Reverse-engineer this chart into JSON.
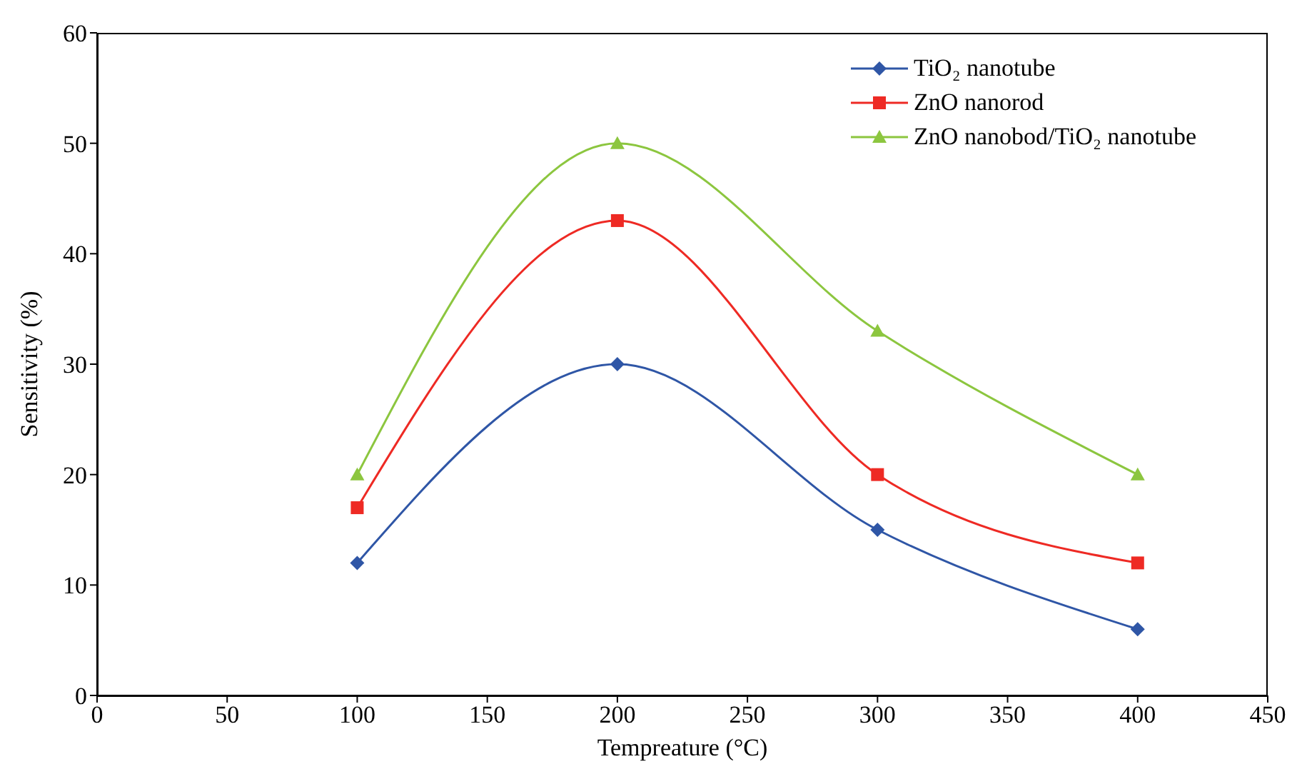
{
  "chart_data": {
    "type": "line",
    "xlabel": "Tempreature (°C)",
    "ylabel": "Sensitivity (%)",
    "x": [
      100,
      200,
      300,
      400
    ],
    "series": [
      {
        "name": "TiO₂ nanotube",
        "color": "#2f56a6",
        "values": [
          12,
          30,
          15,
          6
        ],
        "marker": "diamond"
      },
      {
        "name": "ZnO nanorod",
        "color": "#ee2a24",
        "values": [
          17,
          43,
          20,
          12
        ],
        "marker": "square"
      },
      {
        "name": "ZnO nanobod/TiO₂ nanotube",
        "color": "#8cc63f",
        "values": [
          20,
          50,
          33,
          20
        ],
        "marker": "triangle"
      }
    ],
    "xlim": [
      0,
      450
    ],
    "xticks": [
      0,
      50,
      100,
      150,
      200,
      250,
      300,
      350,
      400,
      450
    ],
    "ylim": [
      0,
      60
    ],
    "yticks": [
      0,
      10,
      20,
      30,
      40,
      50,
      60
    ],
    "legend": "top right",
    "grid": false,
    "line_style": "solid"
  }
}
